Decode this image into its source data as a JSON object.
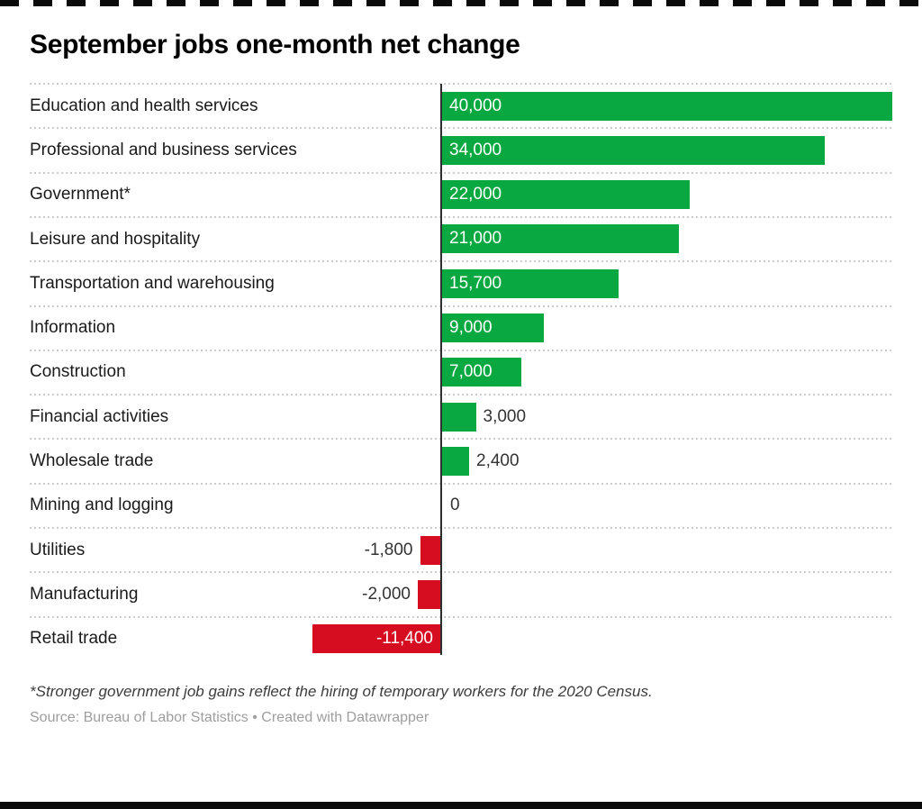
{
  "title": "September jobs one-month net change",
  "footnote": "*Stronger government job gains reflect the hiring of temporary workers for the 2020 Census.",
  "source": "Source: Bureau of Labor Statistics • Created with Datawrapper",
  "colors": {
    "positive_bar": "#0AA841",
    "negative_bar": "#D60D21",
    "axis": "#2f2f2f",
    "gridline": "#cccccc",
    "category_label": "#1a1a1a",
    "value_outside": "#333333",
    "value_inside": "#ffffff",
    "title": "#000000",
    "source_text": "#9e9e9e"
  },
  "chart_data": {
    "type": "bar",
    "orientation": "horizontal",
    "title": "September jobs one-month net change",
    "categories": [
      "Education and health services",
      "Professional and business services",
      "Government*",
      "Leisure and hospitality",
      "Transportation and warehousing",
      "Information",
      "Construction",
      "Financial activities",
      "Wholesale trade",
      "Mining and logging",
      "Utilities",
      "Manufacturing",
      "Retail trade"
    ],
    "values": [
      40000,
      34000,
      22000,
      21000,
      15700,
      9000,
      7000,
      3000,
      2400,
      0,
      -1800,
      -2000,
      -11400
    ],
    "value_labels": [
      "40,000",
      "34,000",
      "22,000",
      "21,000",
      "15,700",
      "9,000",
      "7,000",
      "3,000",
      "2,400",
      "0",
      "-1,800",
      "-2,000",
      "-11,400"
    ],
    "xlim": [
      -12000,
      40000
    ],
    "grid": "dotted-row-separators",
    "legend": "none",
    "value_label_placement": "inside bar when bar is wide enough, otherwise outside next to bar end"
  }
}
